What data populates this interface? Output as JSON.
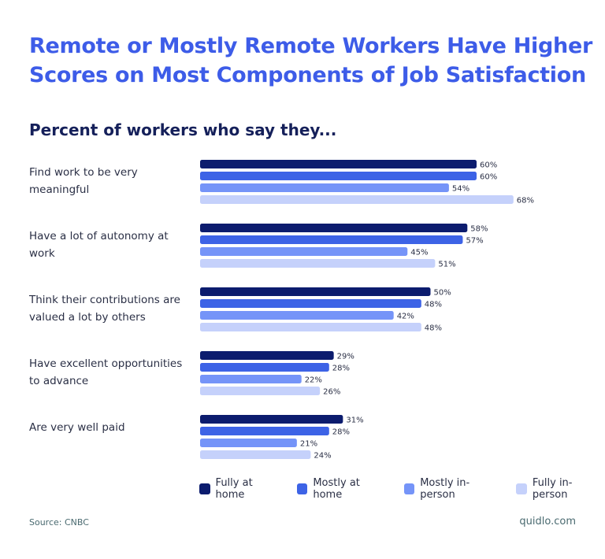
{
  "title": "Remote or Mostly Remote Workers Have Higher Scores on Most Components of Job Satisfaction",
  "subtitle": "Percent of workers who say they...",
  "source": "Source: CNBC",
  "brand": "quidlo.com",
  "chart_data": {
    "type": "bar",
    "orientation": "horizontal",
    "categories": [
      "Find work to be very meaningful",
      "Have a lot of autonomy at work",
      "Think their contributions are valued a lot by others",
      "Have excellent opportunities to advance",
      "Are very well paid"
    ],
    "series": [
      {
        "name": "Fully at home",
        "color": "#0c1c6e",
        "values": [
          60,
          58,
          50,
          29,
          31
        ]
      },
      {
        "name": "Mostly at home",
        "color": "#3d63e6",
        "values": [
          60,
          57,
          48,
          28,
          28
        ]
      },
      {
        "name": "Mostly in-person",
        "color": "#7594f8",
        "values": [
          54,
          45,
          42,
          22,
          21
        ]
      },
      {
        "name": "Fully in-person",
        "color": "#c5d1fb",
        "values": [
          68,
          51,
          48,
          26,
          24
        ]
      }
    ],
    "value_suffix": "%",
    "legend": "bottom",
    "grid": false
  }
}
